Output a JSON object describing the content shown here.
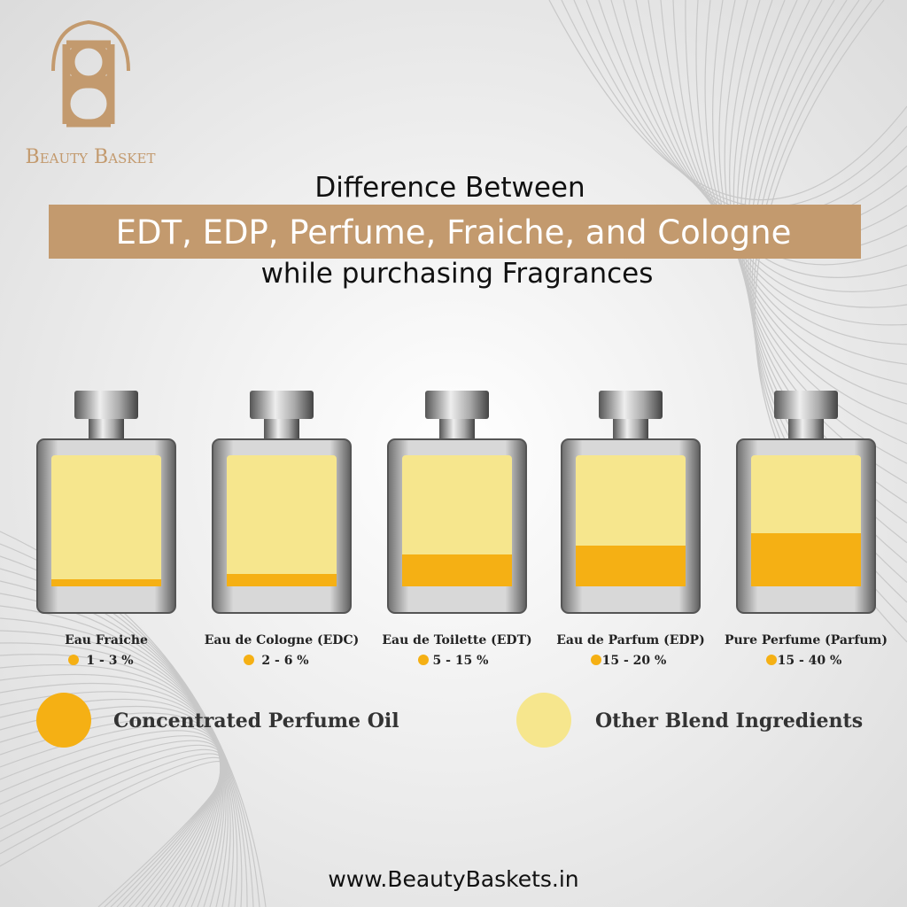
{
  "brand": "Beauty Basket",
  "header": {
    "line1": "Difference Between",
    "highlight": "EDT, EDP, Perfume, Fraiche, and Cologne",
    "line3": "while purchasing Fragrances"
  },
  "bottles": [
    {
      "name": "Eau Fraiche",
      "range": "1 - 3 %"
    },
    {
      "name": "Eau de Cologne (EDC)",
      "range": "2 - 6 %"
    },
    {
      "name": "Eau de Toilette (EDT)",
      "range": "5 - 15 %"
    },
    {
      "name": "Eau de Parfum (EDP)",
      "range": "15 - 20 %"
    },
    {
      "name": "Pure Perfume (Parfum)",
      "range": "15 - 40 %"
    }
  ],
  "legend": {
    "oil": "Concentrated Perfume Oil",
    "other": "Other Blend Ingredients"
  },
  "website": "www.BeautyBaskets.in"
}
